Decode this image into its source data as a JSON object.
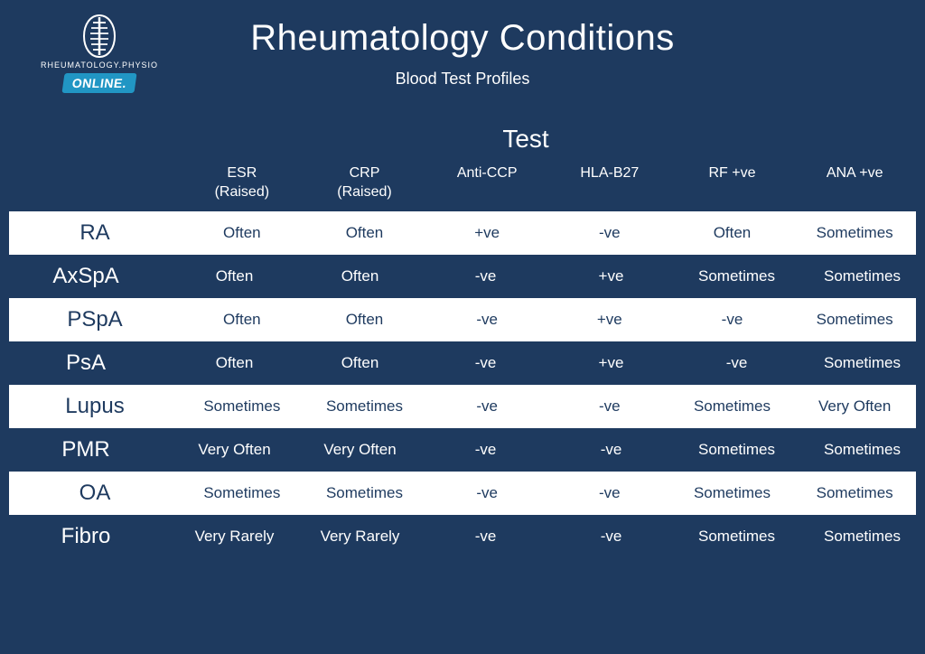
{
  "logo": {
    "brand_text": "RHEUMATOLOGY.PHYSIO",
    "badge_text": "ONLINE."
  },
  "header": {
    "title": "Rheumatology Conditions",
    "subtitle": "Blood Test Profiles"
  },
  "table": {
    "section_label": "Test",
    "columns": [
      "ESR\n(Raised)",
      "CRP\n(Raised)",
      "Anti-CCP",
      "HLA-B27",
      "RF +ve",
      "ANA +ve"
    ],
    "rows": [
      {
        "label": "RA",
        "style": "white",
        "cells": [
          "Often",
          "Often",
          "+ve",
          "-ve",
          "Often",
          "Sometimes"
        ]
      },
      {
        "label": "AxSpA",
        "style": "dark",
        "cells": [
          "Often",
          "Often",
          "-ve",
          "+ve",
          "Sometimes",
          "Sometimes"
        ]
      },
      {
        "label": "PSpA",
        "style": "white",
        "cells": [
          "Often",
          "Often",
          "-ve",
          "+ve",
          "-ve",
          "Sometimes"
        ]
      },
      {
        "label": "PsA",
        "style": "dark",
        "cells": [
          "Often",
          "Often",
          "-ve",
          "+ve",
          "-ve",
          "Sometimes"
        ]
      },
      {
        "label": "Lupus",
        "style": "white",
        "cells": [
          "Sometimes",
          "Sometimes",
          "-ve",
          "-ve",
          "Sometimes",
          "Very Often"
        ]
      },
      {
        "label": "PMR",
        "style": "dark",
        "cells": [
          "Very Often",
          "Very Often",
          "-ve",
          "-ve",
          "Sometimes",
          "Sometimes"
        ]
      },
      {
        "label": "OA",
        "style": "white",
        "cells": [
          "Sometimes",
          "Sometimes",
          "-ve",
          "-ve",
          "Sometimes",
          "Sometimes"
        ]
      },
      {
        "label": "Fibro",
        "style": "dark",
        "cells": [
          "Very Rarely",
          "Very Rarely",
          "-ve",
          "-ve",
          "Sometimes",
          "Sometimes"
        ]
      }
    ]
  },
  "colors": {
    "background": "#1e3a5f",
    "row_white": "#ffffff",
    "text_light": "#ffffff",
    "text_dark": "#1e3a5f",
    "badge_bg": "#2196c4"
  }
}
